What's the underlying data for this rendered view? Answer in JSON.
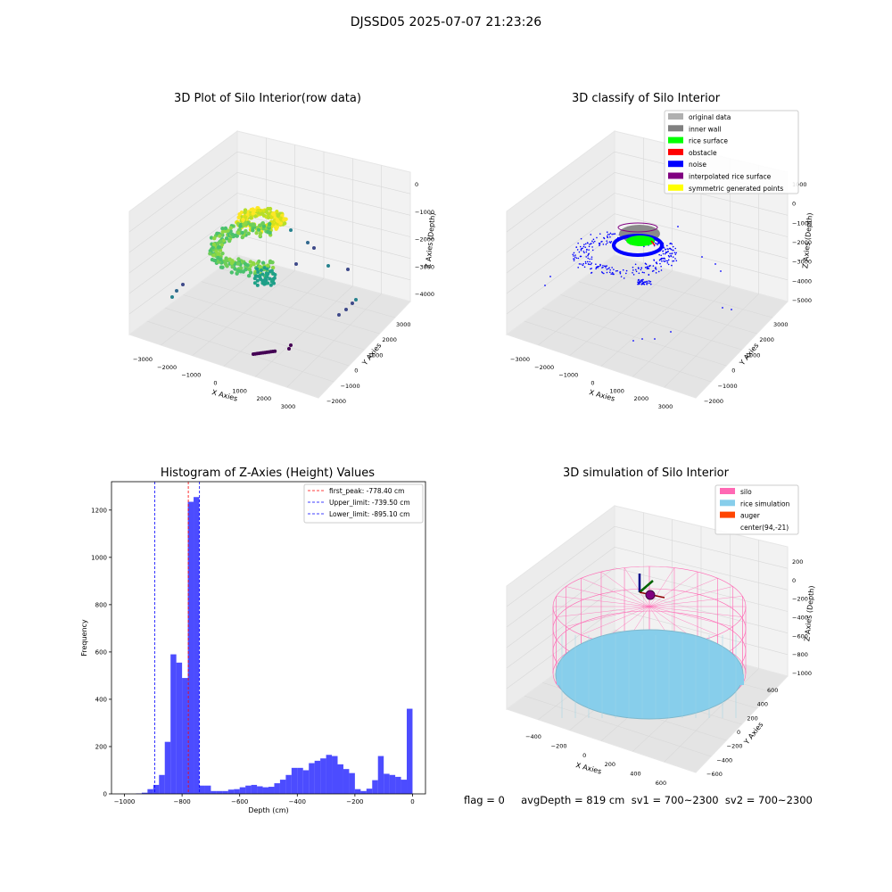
{
  "figure": {
    "suptitle": "DJSSD05 2025-07-07 21:23:26",
    "status_text": "flag = 0     avgDepth = 819 cm  sv1 = 700~2300  sv2 = 700~2300"
  },
  "colors": {
    "histogram_bar": "#0000ff",
    "first_peak_line": "#ff0000",
    "limit_lines": "#0000ff",
    "pane_face": "#f2f2f2",
    "grid": "#d8d8d8"
  },
  "chart_data": [
    {
      "type": "scatter",
      "title": "3D Plot of Silo Interior(row data)",
      "xlabel": "X Axies",
      "ylabel": "Y Axies",
      "zlabel": "Z Axies (Depth)",
      "x_ticks": [
        "−3000",
        "−2000",
        "−1000",
        "0",
        "1000",
        "2000",
        "3000"
      ],
      "y_ticks": [
        "−2000",
        "−1000",
        "0",
        "1000",
        "2000",
        "3000"
      ],
      "z_ticks": [
        "0",
        "−1000",
        "−2000",
        "−3000",
        "−4000"
      ],
      "colormap": "viridis",
      "grid": true
    },
    {
      "type": "scatter",
      "title": "3D classify of Silo Interior",
      "xlabel": "X Axies",
      "ylabel": "Y Axies",
      "zlabel": "Z Axies (Depth)",
      "x_ticks": [
        "−3000",
        "−2000",
        "−1000",
        "0",
        "1000",
        "2000",
        "3000"
      ],
      "y_ticks": [
        "−2000",
        "−1000",
        "0",
        "1000",
        "2000",
        "3000"
      ],
      "z_ticks": [
        "1000",
        "0",
        "−1000",
        "−2000",
        "−3000",
        "−4000",
        "−5000"
      ],
      "legend_position": "top-right",
      "legend": [
        {
          "label": "original data",
          "color": "#b0b0b0"
        },
        {
          "label": "inner wall",
          "color": "#808080"
        },
        {
          "label": "rice surface",
          "color": "#00ff00"
        },
        {
          "label": "obstacle",
          "color": "#ff0000"
        },
        {
          "label": "noise",
          "color": "#0000ff"
        },
        {
          "label": "interpolated rice surface",
          "color": "#800080"
        },
        {
          "label": "symmetric generated points",
          "color": "#ffff00"
        }
      ],
      "grid": true
    },
    {
      "type": "bar",
      "title": "Histogram of Z-Axies (Height) Values",
      "xlabel": "Depth (cm)",
      "ylabel": "Frequency",
      "xlim": [
        -1045,
        45
      ],
      "ylim": [
        0,
        1320
      ],
      "x_ticks": [
        -1000,
        -800,
        -600,
        -400,
        -200,
        0
      ],
      "y_ticks": [
        0,
        200,
        400,
        600,
        800,
        1000,
        1200
      ],
      "bin_width": 20,
      "bin_start": -1000,
      "values": [
        0,
        0,
        2,
        5,
        20,
        38,
        80,
        220,
        590,
        555,
        490,
        1235,
        1255,
        35,
        35,
        12,
        12,
        12,
        18,
        20,
        28,
        35,
        38,
        32,
        28,
        30,
        45,
        60,
        80,
        110,
        110,
        100,
        130,
        140,
        150,
        165,
        160,
        125,
        105,
        88,
        20,
        12,
        22,
        58,
        160,
        85,
        80,
        72,
        60,
        360
      ],
      "vlines": [
        {
          "label": "first_peak: -778.40 cm",
          "value": -778.4,
          "color": "#ff0000"
        },
        {
          "label": "Upper_limit: -739.50 cm",
          "value": -739.5,
          "color": "#0000ff"
        },
        {
          "label": "Lower_limit: -895.10 cm",
          "value": -895.1,
          "color": "#0000ff"
        }
      ],
      "legend_position": "top-right",
      "grid": false
    },
    {
      "type": "scatter",
      "title": "3D simulation of Silo Interior",
      "xlabel": "X Axies",
      "ylabel": "Y Axies",
      "zlabel": "Z Axies (Depth)",
      "x_ticks": [
        "−400",
        "−200",
        "0",
        "200",
        "400",
        "600"
      ],
      "y_ticks": [
        "−600",
        "−400",
        "−200",
        "0",
        "200",
        "400",
        "600"
      ],
      "z_ticks": [
        "200",
        "0",
        "−200",
        "−400",
        "−600",
        "−800",
        "−1000"
      ],
      "legend_position": "top-right",
      "legend": [
        {
          "label": "silo",
          "color": "#ff69b4"
        },
        {
          "label": "rice simulation",
          "color": "#87ceeb"
        },
        {
          "label": "auger",
          "color": "#ff4500"
        },
        {
          "label": "center(94,-21)",
          "color": "#ffffff"
        }
      ],
      "grid": true
    }
  ]
}
